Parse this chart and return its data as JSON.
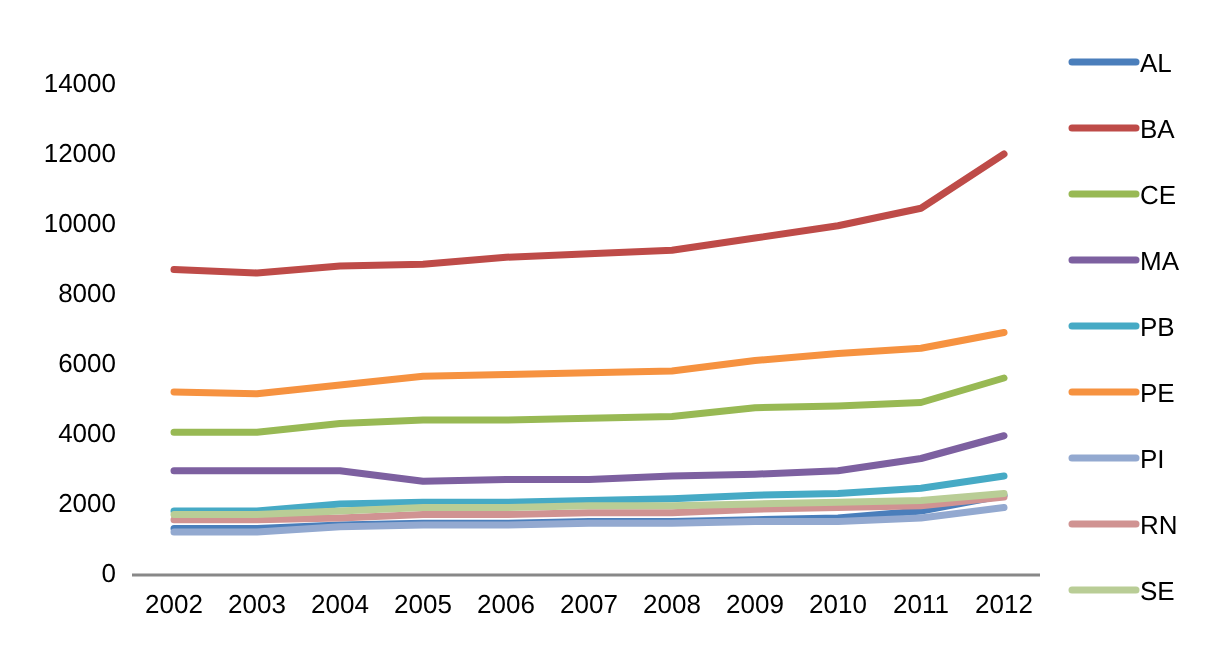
{
  "chart_data": {
    "type": "line",
    "categories": [
      "2002",
      "2003",
      "2004",
      "2005",
      "2006",
      "2007",
      "2008",
      "2009",
      "2010",
      "2011",
      "2012"
    ],
    "ylim": [
      0,
      14000
    ],
    "yticks": [
      0,
      2000,
      4000,
      6000,
      8000,
      10000,
      12000,
      14000
    ],
    "grid": false,
    "legend": "right",
    "series": [
      {
        "name": "AL",
        "color": "#4a7ebb",
        "values": [
          1300,
          1300,
          1400,
          1450,
          1450,
          1500,
          1500,
          1550,
          1600,
          1800,
          2250
        ]
      },
      {
        "name": "BA",
        "color": "#be4b48",
        "values": [
          8700,
          8600,
          8800,
          8850,
          9050,
          9150,
          9250,
          9600,
          9950,
          10450,
          12000
        ]
      },
      {
        "name": "CE",
        "color": "#98b954",
        "values": [
          4050,
          4050,
          4300,
          4400,
          4400,
          4450,
          4500,
          4750,
          4800,
          4900,
          5600
        ]
      },
      {
        "name": "MA",
        "color": "#7d60a0",
        "values": [
          2950,
          2950,
          2950,
          2650,
          2700,
          2700,
          2800,
          2850,
          2950,
          3300,
          3950
        ]
      },
      {
        "name": "PB",
        "color": "#46aac5",
        "values": [
          1800,
          1800,
          2000,
          2050,
          2050,
          2100,
          2150,
          2250,
          2300,
          2450,
          2800
        ]
      },
      {
        "name": "PE",
        "color": "#f69240",
        "values": [
          5200,
          5150,
          5400,
          5650,
          5700,
          5750,
          5800,
          6100,
          6300,
          6450,
          6900
        ]
      },
      {
        "name": "PI",
        "color": "#93a9d0",
        "values": [
          1200,
          1200,
          1350,
          1400,
          1400,
          1450,
          1450,
          1500,
          1500,
          1600,
          1900
        ]
      },
      {
        "name": "RN",
        "color": "#d09392",
        "values": [
          1550,
          1550,
          1600,
          1700,
          1700,
          1750,
          1750,
          1850,
          1900,
          1950,
          2200
        ]
      },
      {
        "name": "SE",
        "color": "#b9cd96",
        "values": [
          1700,
          1700,
          1800,
          1900,
          1900,
          1950,
          1950,
          2000,
          2050,
          2100,
          2300
        ]
      }
    ]
  }
}
